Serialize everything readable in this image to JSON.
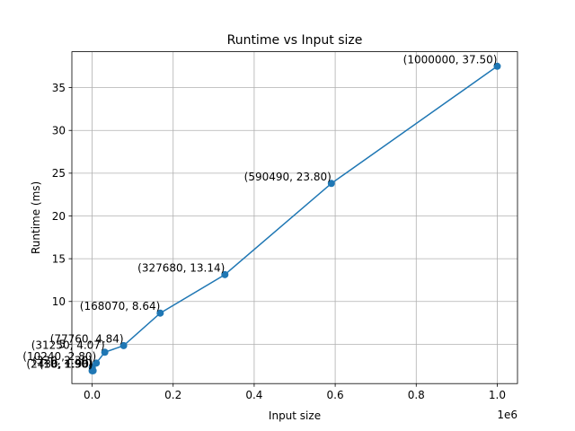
{
  "chart_data": {
    "type": "line",
    "title": "Runtime vs Input size",
    "xlabel": "Input size",
    "ylabel": "Runtime (ms)",
    "x_offset_label": "1e6",
    "xlim": [
      -50000,
      1050000
    ],
    "ylim": [
      0.4,
      39.2
    ],
    "xticks": [
      0,
      200000,
      400000,
      600000,
      800000,
      1000000
    ],
    "xtick_labels": [
      "0.0",
      "0.2",
      "0.4",
      "0.6",
      "0.8",
      "1.0"
    ],
    "yticks": [
      5,
      10,
      15,
      20,
      25,
      30,
      35
    ],
    "ytick_labels": [
      "5",
      "10",
      "15",
      "20",
      "25",
      "30",
      "35"
    ],
    "grid": true,
    "line_color": "#1f77b4",
    "series": [
      {
        "x": [
          10,
          320,
          2430,
          10240,
          31250,
          77760,
          168070,
          327680,
          590490,
          1000000
        ],
        "y": [
          1.9,
          2.3,
          1.9,
          2.8,
          4.07,
          4.84,
          8.64,
          13.14,
          23.8,
          37.5
        ]
      }
    ],
    "annotations": [
      {
        "x": 10,
        "y": 1.9,
        "text": "(10, 1.90)"
      },
      {
        "x": 320,
        "y": 2.3,
        "text": "(320, 2.30)"
      },
      {
        "x": 2430,
        "y": 1.9,
        "text": "(2430, 1.90)"
      },
      {
        "x": 10240,
        "y": 2.8,
        "text": "(10240, 2.80)"
      },
      {
        "x": 31250,
        "y": 4.07,
        "text": "(31250, 4.07)"
      },
      {
        "x": 77760,
        "y": 4.84,
        "text": "(77760, 4.84)"
      },
      {
        "x": 168070,
        "y": 8.64,
        "text": "(168070, 8.64)"
      },
      {
        "x": 327680,
        "y": 13.14,
        "text": "(327680, 13.14)"
      },
      {
        "x": 590490,
        "y": 23.8,
        "text": "(590490, 23.80)"
      },
      {
        "x": 1000000,
        "y": 37.5,
        "text": "(1000000, 37.50)"
      }
    ]
  }
}
